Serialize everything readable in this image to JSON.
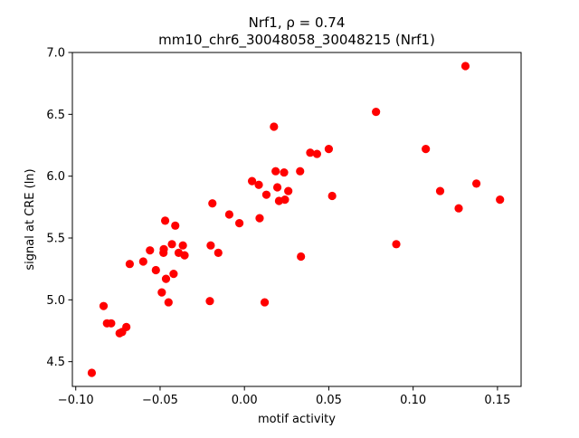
{
  "chart_data": {
    "type": "scatter",
    "title": "Nrf1, ρ = 0.74",
    "subtitle": "mm10_chr6_30048058_30048215 (Nrf1)",
    "xlabel": "motif activity",
    "ylabel": "signal at CRE (ln)",
    "xlim": [
      -0.102,
      0.164
    ],
    "ylim": [
      4.3,
      7.0
    ],
    "xticks": [
      -0.1,
      -0.05,
      0.0,
      0.05,
      0.1,
      0.15
    ],
    "xtick_labels": [
      "−0.10",
      "−0.05",
      "0.00",
      "0.05",
      "0.10",
      "0.15"
    ],
    "yticks": [
      4.5,
      5.0,
      5.5,
      6.0,
      6.5,
      7.0
    ],
    "ytick_labels": [
      "4.5",
      "5.0",
      "5.5",
      "6.0",
      "6.5",
      "7.0"
    ],
    "grid": false,
    "legend": "none",
    "marker_color": "#ff0000",
    "points": [
      {
        "x": -0.0905,
        "y": 4.41
      },
      {
        "x": -0.0835,
        "y": 4.95
      },
      {
        "x": -0.0815,
        "y": 4.81
      },
      {
        "x": -0.079,
        "y": 4.81
      },
      {
        "x": -0.074,
        "y": 4.73
      },
      {
        "x": -0.0725,
        "y": 4.74
      },
      {
        "x": -0.07,
        "y": 4.78
      },
      {
        "x": -0.068,
        "y": 5.29
      },
      {
        "x": -0.06,
        "y": 5.31
      },
      {
        "x": -0.056,
        "y": 5.4
      },
      {
        "x": -0.0525,
        "y": 5.24
      },
      {
        "x": -0.049,
        "y": 5.06
      },
      {
        "x": -0.048,
        "y": 5.38
      },
      {
        "x": -0.0478,
        "y": 5.41
      },
      {
        "x": -0.047,
        "y": 5.64
      },
      {
        "x": -0.0465,
        "y": 5.17
      },
      {
        "x": -0.045,
        "y": 4.98
      },
      {
        "x": -0.043,
        "y": 5.45
      },
      {
        "x": -0.042,
        "y": 5.21
      },
      {
        "x": -0.041,
        "y": 5.6
      },
      {
        "x": -0.039,
        "y": 5.38
      },
      {
        "x": -0.0365,
        "y": 5.44
      },
      {
        "x": -0.0355,
        "y": 5.36
      },
      {
        "x": -0.0205,
        "y": 4.99
      },
      {
        "x": -0.02,
        "y": 5.44
      },
      {
        "x": -0.019,
        "y": 5.78
      },
      {
        "x": -0.0155,
        "y": 5.38
      },
      {
        "x": -0.009,
        "y": 5.69
      },
      {
        "x": -0.003,
        "y": 5.62
      },
      {
        "x": 0.0045,
        "y": 5.96
      },
      {
        "x": 0.0085,
        "y": 5.93
      },
      {
        "x": 0.009,
        "y": 5.66
      },
      {
        "x": 0.012,
        "y": 4.98
      },
      {
        "x": 0.013,
        "y": 5.85
      },
      {
        "x": 0.0175,
        "y": 6.4
      },
      {
        "x": 0.0185,
        "y": 6.04
      },
      {
        "x": 0.0195,
        "y": 5.91
      },
      {
        "x": 0.0205,
        "y": 5.8
      },
      {
        "x": 0.0235,
        "y": 6.03
      },
      {
        "x": 0.024,
        "y": 5.81
      },
      {
        "x": 0.026,
        "y": 5.88
      },
      {
        "x": 0.033,
        "y": 6.04
      },
      {
        "x": 0.0335,
        "y": 5.35
      },
      {
        "x": 0.039,
        "y": 6.19
      },
      {
        "x": 0.043,
        "y": 6.18
      },
      {
        "x": 0.05,
        "y": 6.22
      },
      {
        "x": 0.052,
        "y": 5.84
      },
      {
        "x": 0.078,
        "y": 6.52
      },
      {
        "x": 0.09,
        "y": 5.45
      },
      {
        "x": 0.1075,
        "y": 6.22
      },
      {
        "x": 0.116,
        "y": 5.88
      },
      {
        "x": 0.127,
        "y": 5.74
      },
      {
        "x": 0.131,
        "y": 6.89
      },
      {
        "x": 0.1375,
        "y": 5.94
      },
      {
        "x": 0.1515,
        "y": 5.81
      }
    ]
  }
}
